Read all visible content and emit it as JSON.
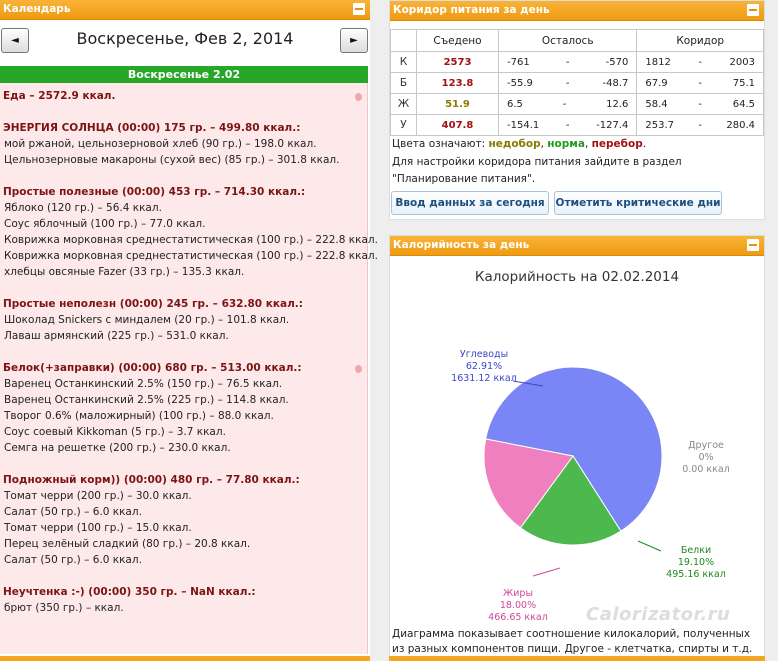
{
  "left_panel": {
    "title": "Календарь",
    "prev_label": "◄",
    "next_label": "►",
    "date_title": "Воскресенье, Фев 2, 2014",
    "day_header": "Воскресенье 2.02",
    "total": "Еда – 2572.9 ккал.",
    "groups": [
      {
        "title": "ЭНЕРГИЯ СОЛНЦА (00:00) 175 гр. – 499.80 ккал.:",
        "items": [
          "мой ржаной, цельнозерновой хлеб (90 гр.) – 198.0 ккал.",
          "Цельнозерновые макароны (сухой вес) (85 гр.) – 301.8 ккал."
        ]
      },
      {
        "title": "Простые полезные (00:00) 453 гр. – 714.30 ккал.:",
        "items": [
          "Яблоко (120 гр.) – 56.4 ккал.",
          "Соус яблочный (100 гр.) – 77.0 ккал.",
          "Коврижка морковная среднестатистическая (100 гр.) – 222.8 ккал.",
          "Коврижка морковная среднестатистическая (100 гр.) – 222.8 ккал.",
          "хлебцы овсяные Fazer (33 гр.) – 135.3 ккал."
        ]
      },
      {
        "title": "Простые неполезн (00:00) 245 гр. – 632.80 ккал.:",
        "items": [
          "Шоколад Snickers с миндалем (20 гр.) – 101.8 ккал.",
          "Лаваш армянский (225 гр.) – 531.0 ккал."
        ]
      },
      {
        "title": "Белок(+заправки) (00:00) 680 гр. – 513.00 ккал.:",
        "items": [
          "Варенец Останкинский 2.5% (150 гр.) – 76.5 ккал.",
          "Варенец Останкинский 2.5% (225 гр.) – 114.8 ккал.",
          "Творог 0.6% (маложирный) (100 гр.) – 88.0 ккал.",
          "Соус соевый Kikkoman (5 гр.) – 3.7 ккал.",
          "Семга на решетке (200 гр.) – 230.0 ккал."
        ]
      },
      {
        "title": "Подножный корм)) (00:00) 480 гр. – 77.80 ккал.:",
        "items": [
          "Томат черри (200 гр.) – 30.0 ккал.",
          "Салат (50 гр.) – 6.0 ккал.",
          "Томат черри (100 гр.) – 15.0 ккал.",
          "Перец зелёный сладкий (80 гр.) – 20.8 ккал.",
          "Салат (50 гр.) – 6.0 ккал."
        ]
      },
      {
        "title": "Неучтенка :-) (00:00) 350 гр. – NaN ккал.:",
        "items": [
          "брют (350 гр.) – ккал."
        ]
      }
    ]
  },
  "corridor": {
    "title": "Коридор питания за день",
    "headers": {
      "eaten": "Съедено",
      "remaining": "Осталось",
      "corridor": "Коридор"
    },
    "rows": [
      {
        "label": "К",
        "eaten": "2573",
        "eaten_color": "#a31010",
        "rem_min": "-761",
        "rem_max": "-570",
        "cor_min": "1812",
        "cor_max": "2003"
      },
      {
        "label": "Б",
        "eaten": "123.8",
        "eaten_color": "#a31010",
        "rem_min": "-55.9",
        "rem_max": "-48.7",
        "cor_min": "67.9",
        "cor_max": "75.1"
      },
      {
        "label": "Ж",
        "eaten": "51.9",
        "eaten_color": "#8a7b00",
        "rem_min": "6.5",
        "rem_max": "12.6",
        "cor_min": "58.4",
        "cor_max": "64.5"
      },
      {
        "label": "У",
        "eaten": "407.8",
        "eaten_color": "#a31010",
        "rem_min": "-154.1",
        "rem_max": "-127.4",
        "cor_min": "253.7",
        "cor_max": "280.4"
      }
    ],
    "dash": "-",
    "legend_prefix": "Цвета означают: ",
    "legend_under": "недобор",
    "legend_norm": "норма",
    "legend_over": "перебор",
    "comma": ", ",
    "period": ".",
    "note_line1": "Для настройки коридора питания зайдите в раздел",
    "note_line2": "\"Планирование питания\".",
    "btn_today": "Ввод данных за сегодня",
    "btn_critical": "Отметить критические дни"
  },
  "calories": {
    "title": "Калорийность за день",
    "caption": "Диаграмма показывает соотношение килокалорий, полученных из разных компонентов пищи. Другое - клетчатка, спирты и т.д.",
    "watermark": "Calorizator.ru"
  },
  "chart_data": {
    "type": "pie",
    "title": "Калорийность на 02.02.2014",
    "slices": [
      {
        "name": "Углеводы",
        "percent": 62.91,
        "percent_label": "62.91%",
        "value_label": "1631.12 ккал",
        "color": "#7a86f5"
      },
      {
        "name": "Другое",
        "percent": 0,
        "percent_label": "0%",
        "value_label": "0.00 ккал",
        "color": "#999999"
      },
      {
        "name": "Белки",
        "percent": 19.1,
        "percent_label": "19.10%",
        "value_label": "495.16 ккал",
        "color": "#4db84d"
      },
      {
        "name": "Жиры",
        "percent": 18.0,
        "percent_label": "18.00%",
        "value_label": "466.65 ккал",
        "color": "#f07fc0"
      }
    ],
    "label_colors": {
      "Углеводы": "#3a47c9",
      "Другое": "#888888",
      "Белки": "#1e8a1e",
      "Жиры": "#d0479a"
    }
  }
}
